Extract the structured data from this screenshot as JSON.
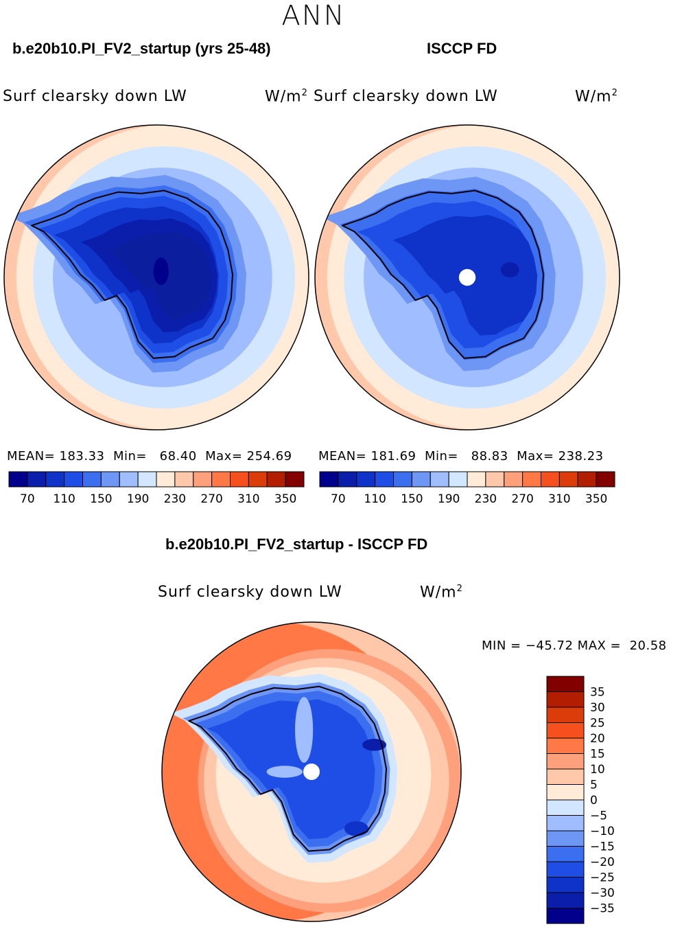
{
  "figure": {
    "season": "ANN",
    "panels": [
      {
        "case_title": "b.e20b10.PI_FV2_startup (yrs 25-48)",
        "variable": "Surf clearsky down LW",
        "units": "W/m",
        "units_sup": "2",
        "stats": {
          "mean_label": "MEAN=",
          "mean": "183.33",
          "min_label": "Min=",
          "min": "68.40",
          "max_label": "Max=",
          "max": "254.69"
        }
      },
      {
        "case_title": "ISCCP FD",
        "variable": "Surf clearsky down LW",
        "units": "W/m",
        "units_sup": "2",
        "stats": {
          "mean_label": "MEAN=",
          "mean": "181.69",
          "min_label": "Min=",
          "min": "88.83",
          "max_label": "Max=",
          "max": "238.23"
        }
      }
    ],
    "diff": {
      "case_title": "b.e20b10.PI_FV2_startup - ISCCP FD",
      "variable": "Surf clearsky down LW",
      "units": "W/m",
      "units_sup": "2",
      "minmax": "MIN = −45.72 MAX =  20.58"
    }
  },
  "chart_data": [
    {
      "type": "heatmap",
      "name": "b.e20b10.PI_FV2_startup (yrs 25-48)",
      "projection": "south-polar-stereographic",
      "colorbar": {
        "orientation": "horizontal",
        "ticks": [
          "70",
          "110",
          "150",
          "190",
          "230",
          "270",
          "310",
          "350"
        ],
        "colors": [
          "#00008c",
          "#0a1eab",
          "#0f32c8",
          "#1e4ee6",
          "#3c6ef0",
          "#6e96f5",
          "#a0beff",
          "#d2e6ff",
          "#ffebd7",
          "#ffc8aa",
          "#ffa07d",
          "#ff7846",
          "#f5501e",
          "#dc3c0a",
          "#b41e00",
          "#820000"
        ]
      }
    },
    {
      "type": "heatmap",
      "name": "ISCCP FD",
      "projection": "south-polar-stereographic",
      "colorbar": {
        "orientation": "horizontal",
        "ticks": [
          "70",
          "110",
          "150",
          "190",
          "230",
          "270",
          "310",
          "350"
        ],
        "colors": [
          "#00008c",
          "#0a1eab",
          "#0f32c8",
          "#1e4ee6",
          "#3c6ef0",
          "#6e96f5",
          "#a0beff",
          "#d2e6ff",
          "#ffebd7",
          "#ffc8aa",
          "#ffa07d",
          "#ff7846",
          "#f5501e",
          "#dc3c0a",
          "#b41e00",
          "#820000"
        ]
      }
    },
    {
      "type": "heatmap",
      "name": "b.e20b10.PI_FV2_startup - ISCCP FD",
      "projection": "south-polar-stereographic",
      "colorbar": {
        "orientation": "vertical",
        "ticks": [
          "35",
          "30",
          "25",
          "20",
          "15",
          "10",
          "5",
          "0",
          "−5",
          "−10",
          "−15",
          "−20",
          "−25",
          "−30",
          "−35"
        ],
        "colors": [
          "#820000",
          "#b41e00",
          "#dc3c0a",
          "#f5501e",
          "#ff7846",
          "#ffa07d",
          "#ffc8aa",
          "#ffebd7",
          "#d2e6ff",
          "#a0beff",
          "#6e96f5",
          "#3c6ef0",
          "#1e4ee6",
          "#0f32c8",
          "#0a1eab",
          "#00008c"
        ]
      }
    }
  ]
}
